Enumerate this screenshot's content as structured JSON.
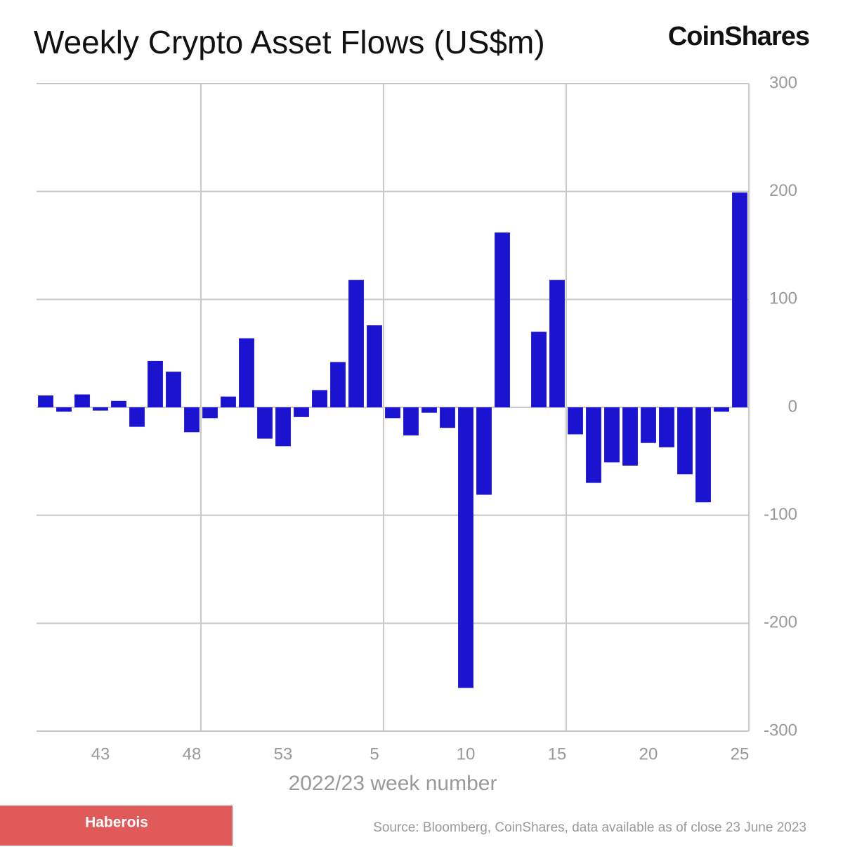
{
  "chart_data": {
    "type": "bar",
    "title": "Weekly Crypto Asset Flows (US$m)",
    "brand": "CoinShares",
    "x_label": "2022/23 week number",
    "source": "Source: Bloomberg, CoinShares, data available as of close 23 June 2023",
    "badge": "Haberois",
    "categories": [
      null,
      null,
      null,
      "43",
      null,
      null,
      null,
      null,
      "48",
      null,
      null,
      null,
      null,
      "53",
      null,
      null,
      null,
      null,
      "5",
      null,
      null,
      null,
      null,
      "10",
      null,
      null,
      null,
      null,
      "15",
      null,
      null,
      null,
      null,
      "20",
      null,
      null,
      null,
      null,
      "25"
    ],
    "values": [
      11,
      -4,
      12,
      -3,
      6,
      -18,
      43,
      33,
      -23,
      -10,
      10,
      64,
      -29,
      -36,
      -9,
      16,
      42,
      118,
      76,
      -10,
      -26,
      -5,
      -19,
      -260,
      -81,
      162,
      0,
      70,
      118,
      -25,
      -70,
      -51,
      -54,
      -33,
      -37,
      -62,
      -88,
      -4,
      199
    ],
    "color": "#1a14d0",
    "ylim": [
      -300,
      300
    ],
    "yticks": [
      300,
      200,
      100,
      0,
      -100,
      -200,
      -300
    ],
    "grid": true
  }
}
